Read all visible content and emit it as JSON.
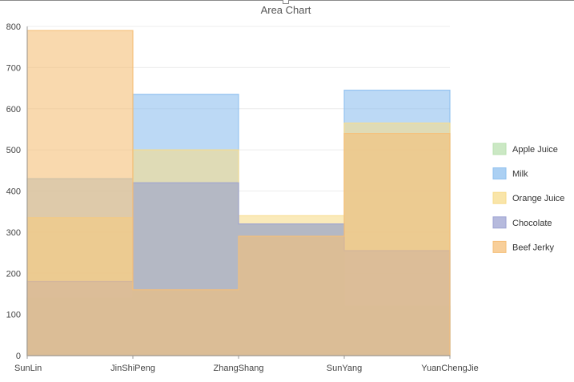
{
  "chart_data": {
    "type": "area",
    "title": "Area Chart",
    "categories": [
      "SunLin",
      "JinShiPeng",
      "ZhangShang",
      "SunYang",
      "YuanChengJie"
    ],
    "ylim": [
      0,
      800
    ],
    "yticks": [
      0,
      100,
      200,
      300,
      400,
      500,
      600,
      700,
      800
    ],
    "step": true,
    "grid": true,
    "legend_position": "right",
    "series": [
      {
        "name": "Apple Juice",
        "values": [
          140,
          420,
          320,
          120,
          120
        ],
        "color": "#b9e0b0"
      },
      {
        "name": "Milk",
        "values": [
          430,
          635,
          320,
          645,
          645
        ],
        "color": "#8fc0ef"
      },
      {
        "name": "Orange Juice",
        "values": [
          335,
          500,
          340,
          565,
          565
        ],
        "color": "#f7dc8c"
      },
      {
        "name": "Chocolate",
        "values": [
          180,
          420,
          320,
          255,
          255
        ],
        "color": "#9da3d2"
      },
      {
        "name": "Beef Jerky",
        "values": [
          790,
          160,
          290,
          540,
          540
        ],
        "color": "#f5bf78"
      }
    ]
  }
}
